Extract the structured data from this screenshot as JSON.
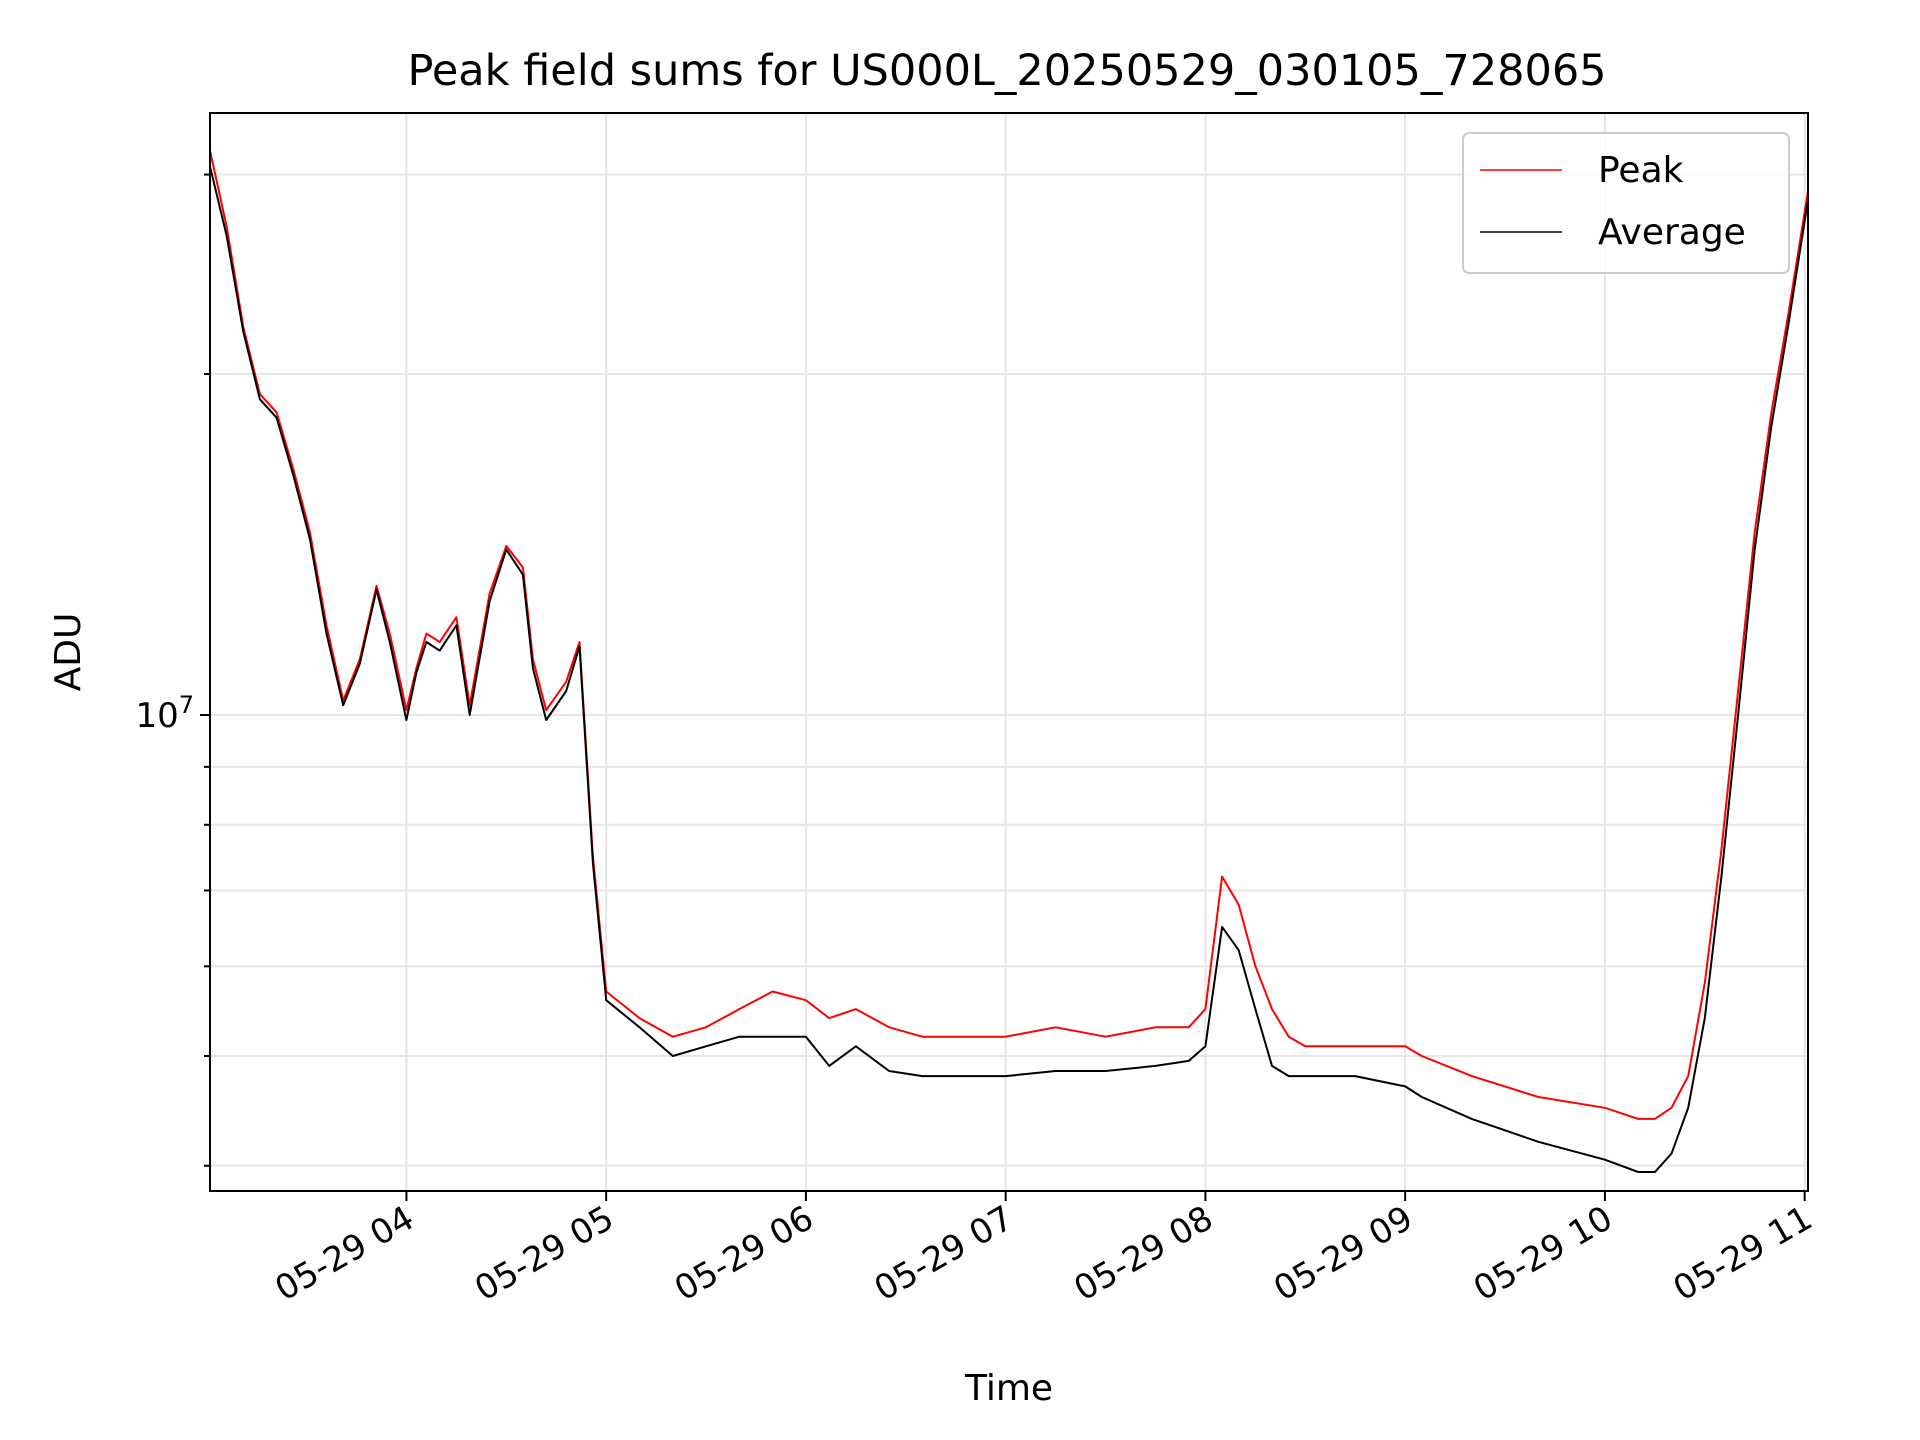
{
  "chart_data": {
    "type": "line",
    "title": "Peak field sums for US000L_20250529_030105_728065",
    "xlabel": "Time",
    "ylabel": "ADU",
    "x_scale": "time",
    "y_scale": "log",
    "xlim": [
      "2025-05-29 03:01",
      "2025-05-29 11:01"
    ],
    "ylim": [
      3800000,
      34000000
    ],
    "grid": true,
    "legend_position": "top-right",
    "x_ticks": [
      {
        "value": "2025-05-29 04:00",
        "label": "05-29 04"
      },
      {
        "value": "2025-05-29 05:00",
        "label": "05-29 05"
      },
      {
        "value": "2025-05-29 06:00",
        "label": "05-29 06"
      },
      {
        "value": "2025-05-29 07:00",
        "label": "05-29 07"
      },
      {
        "value": "2025-05-29 08:00",
        "label": "05-29 08"
      },
      {
        "value": "2025-05-29 09:00",
        "label": "05-29 09"
      },
      {
        "value": "2025-05-29 10:00",
        "label": "05-29 10"
      },
      {
        "value": "2025-05-29 11:00",
        "label": "05-29 11"
      }
    ],
    "y_ticks": [
      {
        "value": 10000000,
        "label_base": "10",
        "label_exp": "7"
      }
    ],
    "series": [
      {
        "name": "Peak",
        "color": "#ff0000",
        "x": [
          "2025-05-29 03:01",
          "2025-05-29 03:06",
          "2025-05-29 03:11",
          "2025-05-29 03:16",
          "2025-05-29 03:21",
          "2025-05-29 03:26",
          "2025-05-29 03:31",
          "2025-05-29 03:36",
          "2025-05-29 03:41",
          "2025-05-29 03:46",
          "2025-05-29 03:51",
          "2025-05-29 03:55",
          "2025-05-29 04:00",
          "2025-05-29 04:03",
          "2025-05-29 04:06",
          "2025-05-29 04:10",
          "2025-05-29 04:15",
          "2025-05-29 04:19",
          "2025-05-29 04:25",
          "2025-05-29 04:30",
          "2025-05-29 04:35",
          "2025-05-29 04:38",
          "2025-05-29 04:42",
          "2025-05-29 04:48",
          "2025-05-29 04:52",
          "2025-05-29 04:56",
          "2025-05-29 05:00",
          "2025-05-29 05:10",
          "2025-05-29 05:20",
          "2025-05-29 05:30",
          "2025-05-29 05:40",
          "2025-05-29 05:50",
          "2025-05-29 06:00",
          "2025-05-29 06:07",
          "2025-05-29 06:15",
          "2025-05-29 06:25",
          "2025-05-29 06:35",
          "2025-05-29 06:50",
          "2025-05-29 07:00",
          "2025-05-29 07:15",
          "2025-05-29 07:30",
          "2025-05-29 07:45",
          "2025-05-29 07:55",
          "2025-05-29 08:00",
          "2025-05-29 08:05",
          "2025-05-29 08:10",
          "2025-05-29 08:15",
          "2025-05-29 08:20",
          "2025-05-29 08:25",
          "2025-05-29 08:30",
          "2025-05-29 08:35",
          "2025-05-29 08:45",
          "2025-05-29 09:00",
          "2025-05-29 09:05",
          "2025-05-29 09:20",
          "2025-05-29 09:40",
          "2025-05-29 10:00",
          "2025-05-29 10:10",
          "2025-05-29 10:15",
          "2025-05-29 10:20",
          "2025-05-29 10:25",
          "2025-05-29 10:30",
          "2025-05-29 10:35",
          "2025-05-29 10:40",
          "2025-05-29 10:45",
          "2025-05-29 10:50",
          "2025-05-29 10:55",
          "2025-05-29 11:01"
        ],
        "y": [
          31500000,
          27000000,
          22000000,
          19200000,
          18500000,
          16500000,
          14500000,
          12000000,
          10300000,
          11200000,
          13000000,
          11800000,
          10100000,
          11000000,
          11800000,
          11600000,
          12200000,
          10200000,
          12800000,
          14100000,
          13500000,
          11200000,
          10100000,
          10700000,
          11600000,
          7500000,
          5700000,
          5400000,
          5200000,
          5300000,
          5500000,
          5700000,
          5600000,
          5400000,
          5500000,
          5300000,
          5200000,
          5200000,
          5200000,
          5300000,
          5200000,
          5300000,
          5300000,
          5500000,
          7200000,
          6800000,
          6000000,
          5500000,
          5200000,
          5100000,
          5100000,
          5100000,
          5100000,
          5000000,
          4800000,
          4600000,
          4500000,
          4400000,
          4400000,
          4500000,
          4800000,
          5800000,
          7600000,
          10500000,
          14500000,
          18500000,
          22500000,
          29000000
        ]
      },
      {
        "name": "Average",
        "color": "#000000",
        "x": [
          "2025-05-29 03:01",
          "2025-05-29 03:06",
          "2025-05-29 03:11",
          "2025-05-29 03:16",
          "2025-05-29 03:21",
          "2025-05-29 03:26",
          "2025-05-29 03:31",
          "2025-05-29 03:36",
          "2025-05-29 03:41",
          "2025-05-29 03:46",
          "2025-05-29 03:51",
          "2025-05-29 03:55",
          "2025-05-29 04:00",
          "2025-05-29 04:03",
          "2025-05-29 04:06",
          "2025-05-29 04:10",
          "2025-05-29 04:15",
          "2025-05-29 04:19",
          "2025-05-29 04:25",
          "2025-05-29 04:30",
          "2025-05-29 04:35",
          "2025-05-29 04:38",
          "2025-05-29 04:42",
          "2025-05-29 04:48",
          "2025-05-29 04:52",
          "2025-05-29 04:56",
          "2025-05-29 05:00",
          "2025-05-29 05:10",
          "2025-05-29 05:20",
          "2025-05-29 05:30",
          "2025-05-29 05:40",
          "2025-05-29 05:50",
          "2025-05-29 06:00",
          "2025-05-29 06:07",
          "2025-05-29 06:15",
          "2025-05-29 06:25",
          "2025-05-29 06:35",
          "2025-05-29 06:50",
          "2025-05-29 07:00",
          "2025-05-29 07:15",
          "2025-05-29 07:30",
          "2025-05-29 07:45",
          "2025-05-29 07:55",
          "2025-05-29 08:00",
          "2025-05-29 08:05",
          "2025-05-29 08:10",
          "2025-05-29 08:15",
          "2025-05-29 08:20",
          "2025-05-29 08:25",
          "2025-05-29 08:30",
          "2025-05-29 08:35",
          "2025-05-29 08:45",
          "2025-05-29 09:00",
          "2025-05-29 09:05",
          "2025-05-29 09:20",
          "2025-05-29 09:40",
          "2025-05-29 10:00",
          "2025-05-29 10:10",
          "2025-05-29 10:15",
          "2025-05-29 10:20",
          "2025-05-29 10:25",
          "2025-05-29 10:30",
          "2025-05-29 10:35",
          "2025-05-29 10:40",
          "2025-05-29 10:45",
          "2025-05-29 10:50",
          "2025-05-29 10:55",
          "2025-05-29 11:01"
        ],
        "y": [
          30500000,
          26500000,
          21800000,
          19000000,
          18300000,
          16300000,
          14300000,
          11800000,
          10200000,
          11100000,
          12900000,
          11600000,
          9900000,
          10900000,
          11600000,
          11400000,
          12000000,
          10000000,
          12600000,
          14000000,
          13300000,
          11000000,
          9900000,
          10500000,
          11500000,
          7400000,
          5600000,
          5300000,
          5000000,
          5100000,
          5200000,
          5200000,
          5200000,
          4900000,
          5100000,
          4850000,
          4800000,
          4800000,
          4800000,
          4850000,
          4850000,
          4900000,
          4950000,
          5100000,
          6500000,
          6200000,
          5500000,
          4900000,
          4800000,
          4800000,
          4800000,
          4800000,
          4700000,
          4600000,
          4400000,
          4200000,
          4050000,
          3950000,
          3950000,
          4100000,
          4500000,
          5400000,
          7200000,
          10000000,
          14000000,
          18000000,
          22000000,
          28500000
        ]
      }
    ]
  }
}
